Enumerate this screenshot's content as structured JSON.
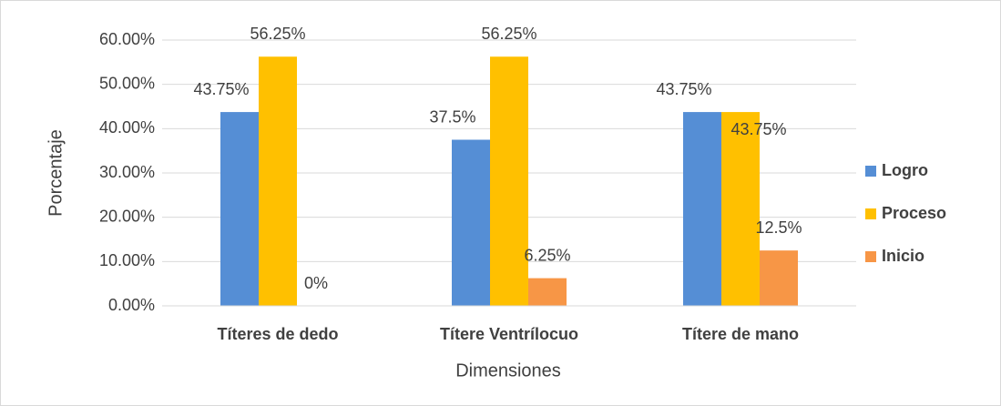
{
  "chart_data": {
    "type": "bar",
    "categories": [
      "Títeres de dedo",
      "Títere Ventrílocuo",
      "Títere de mano"
    ],
    "series": [
      {
        "name": "Logro",
        "color": "#558ed5",
        "values": [
          43.75,
          37.5,
          43.75
        ],
        "value_labels": [
          "43.75%",
          "37.5%",
          "43.75%"
        ]
      },
      {
        "name": "Proceso",
        "color": "#ffc000",
        "values": [
          56.25,
          56.25,
          43.75
        ],
        "value_labels": [
          "56.25%",
          "56.25%",
          "43.75%"
        ]
      },
      {
        "name": "Inicio",
        "color": "#f79646",
        "values": [
          0,
          6.25,
          12.5
        ],
        "value_labels": [
          "0%",
          "6.25%",
          "12.5%"
        ]
      }
    ],
    "ylabel": "Porcentaje",
    "xlabel": "Dimensiones",
    "ylim": [
      0,
      60
    ],
    "yticks": [
      {
        "value": 0,
        "label": "0.00%"
      },
      {
        "value": 10,
        "label": "10.00%"
      },
      {
        "value": 20,
        "label": "20.00%"
      },
      {
        "value": 30,
        "label": "30.00%"
      },
      {
        "value": 40,
        "label": "40.00%"
      },
      {
        "value": 50,
        "label": "50.00%"
      },
      {
        "value": 60,
        "label": "60.00%"
      }
    ],
    "grid": true,
    "legend": "right"
  }
}
